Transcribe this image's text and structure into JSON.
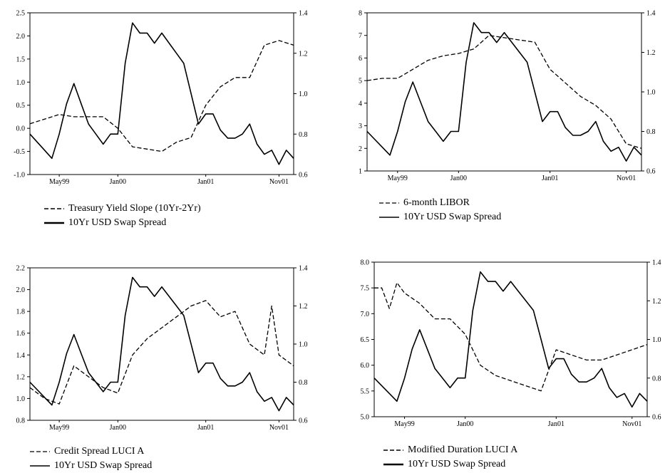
{
  "chart_data": [
    {
      "type": "line",
      "x_ticks": [
        "May99",
        "Jan00",
        "Jan01",
        "Nov01"
      ],
      "y_left_ticks": [
        "2.5",
        "2.0",
        "1.5",
        "1.0",
        "0.5",
        "0.0",
        "-0.5",
        "-1.0"
      ],
      "y_right_ticks": [
        "1.4",
        "1.2",
        "1.0",
        "0.8",
        "0.6"
      ],
      "ylim_left": [
        -1.0,
        2.5
      ],
      "ylim_right": [
        0.6,
        1.4
      ],
      "grid": false,
      "legend_position": "bottom-left",
      "legend": [
        {
          "name": "Treasury Yield Slope (10Yr-2Yr)",
          "style": "dashed",
          "axis": "left"
        },
        {
          "name": "10Yr USD Swap Spread",
          "style": "solid",
          "axis": "right"
        }
      ],
      "series": [
        {
          "name": "Treasury Yield Slope (10Yr-2Yr)",
          "axis": "left",
          "style": "dashed",
          "x": [
            "Jan99",
            "Mar99",
            "May99",
            "Jul99",
            "Sep99",
            "Nov99",
            "Jan00",
            "Mar00",
            "May00",
            "Jul00",
            "Sep00",
            "Nov00",
            "Jan01",
            "Mar01",
            "May01",
            "Jul01",
            "Sep01",
            "Nov01",
            "Jan02"
          ],
          "values": [
            0.1,
            0.2,
            0.3,
            0.25,
            0.25,
            0.25,
            0.0,
            -0.4,
            -0.45,
            -0.5,
            -0.3,
            -0.2,
            0.5,
            0.9,
            1.1,
            1.1,
            1.8,
            1.9,
            1.8
          ]
        },
        {
          "name": "10Yr USD Swap Spread",
          "axis": "right",
          "style": "solid",
          "x": [
            "Jan99",
            "Mar99",
            "Apr99",
            "May99",
            "Jun99",
            "Jul99",
            "Aug99",
            "Sep99",
            "Oct99",
            "Nov99",
            "Dec99",
            "Jan00",
            "Feb00",
            "Mar00",
            "Apr00",
            "May00",
            "Jun00",
            "Jul00",
            "Aug00",
            "Sep00",
            "Oct00",
            "Nov00",
            "Dec00",
            "Jan01",
            "Feb01",
            "Mar01",
            "Apr01",
            "May01",
            "Jun01",
            "Jul01",
            "Aug01",
            "Sep01",
            "Oct01",
            "Nov01",
            "Dec01",
            "Jan02"
          ],
          "values": [
            0.8,
            0.72,
            0.68,
            0.8,
            0.95,
            1.05,
            0.95,
            0.85,
            0.8,
            0.75,
            0.8,
            0.8,
            1.15,
            1.35,
            1.3,
            1.3,
            1.25,
            1.3,
            1.25,
            1.2,
            1.15,
            1.0,
            0.85,
            0.9,
            0.9,
            0.82,
            0.78,
            0.78,
            0.8,
            0.85,
            0.75,
            0.7,
            0.72,
            0.65,
            0.72,
            0.68
          ]
        }
      ]
    },
    {
      "type": "line",
      "x_ticks": [
        "May99",
        "Jan00",
        "Jan01",
        "Nov01"
      ],
      "y_left_ticks": [
        "8",
        "7",
        "6",
        "5",
        "4",
        "3",
        "2",
        "1"
      ],
      "y_right_ticks": [
        "1.4",
        "1.2",
        "1.0",
        "0.8",
        "0.6"
      ],
      "ylim_left": [
        1,
        8
      ],
      "ylim_right": [
        0.6,
        1.4
      ],
      "grid": false,
      "legend_position": "bottom-left",
      "legend": [
        {
          "name": "6-month LIBOR",
          "style": "dashed",
          "axis": "left"
        },
        {
          "name": "10Yr USD Swap Spread",
          "style": "solid",
          "axis": "right"
        }
      ],
      "series": [
        {
          "name": "6-month LIBOR",
          "axis": "left",
          "style": "dashed",
          "x": [
            "Jan99",
            "Mar99",
            "May99",
            "Jul99",
            "Sep99",
            "Nov99",
            "Jan00",
            "Mar00",
            "May00",
            "Jul00",
            "Sep00",
            "Nov00",
            "Jan01",
            "Mar01",
            "May01",
            "Jul01",
            "Sep01",
            "Nov01",
            "Jan02"
          ],
          "values": [
            5.0,
            5.1,
            5.1,
            5.5,
            5.9,
            6.1,
            6.2,
            6.4,
            7.0,
            6.9,
            6.8,
            6.7,
            5.5,
            4.9,
            4.3,
            3.9,
            3.3,
            2.2,
            2.0
          ]
        },
        {
          "name": "10Yr USD Swap Spread",
          "axis": "right",
          "style": "solid",
          "x": [
            "Jan99",
            "Mar99",
            "Apr99",
            "May99",
            "Jun99",
            "Jul99",
            "Aug99",
            "Sep99",
            "Oct99",
            "Nov99",
            "Dec99",
            "Jan00",
            "Feb00",
            "Mar00",
            "Apr00",
            "May00",
            "Jun00",
            "Jul00",
            "Aug00",
            "Sep00",
            "Oct00",
            "Nov00",
            "Dec00",
            "Jan01",
            "Feb01",
            "Mar01",
            "Apr01",
            "May01",
            "Jun01",
            "Jul01",
            "Aug01",
            "Sep01",
            "Oct01",
            "Nov01",
            "Dec01",
            "Jan02"
          ],
          "values": [
            0.8,
            0.72,
            0.68,
            0.8,
            0.95,
            1.05,
            0.95,
            0.85,
            0.8,
            0.75,
            0.8,
            0.8,
            1.15,
            1.35,
            1.3,
            1.3,
            1.25,
            1.3,
            1.25,
            1.2,
            1.15,
            1.0,
            0.85,
            0.9,
            0.9,
            0.82,
            0.78,
            0.78,
            0.8,
            0.85,
            0.75,
            0.7,
            0.72,
            0.65,
            0.72,
            0.68
          ]
        }
      ]
    },
    {
      "type": "line",
      "x_ticks": [
        "May99",
        "Jan00",
        "Jan01",
        "Nov01"
      ],
      "y_left_ticks": [
        "2.2",
        "2.0",
        "1.8",
        "1.6",
        "1.4",
        "1.2",
        "1.0",
        "0.8"
      ],
      "y_right_ticks": [
        "1.4",
        "1.2",
        "1.0",
        "0.8",
        "0.6"
      ],
      "ylim_left": [
        0.8,
        2.2
      ],
      "ylim_right": [
        0.6,
        1.4
      ],
      "grid": false,
      "legend_position": "bottom-left",
      "legend": [
        {
          "name": "Credit Spread LUCI A",
          "style": "dashed",
          "axis": "left"
        },
        {
          "name": "10Yr USD Swap Spread",
          "style": "solid",
          "axis": "right"
        }
      ],
      "series": [
        {
          "name": "Credit Spread LUCI A",
          "axis": "left",
          "style": "dashed",
          "x": [
            "Jan99",
            "Mar99",
            "May99",
            "Jul99",
            "Sep99",
            "Nov99",
            "Jan00",
            "Mar00",
            "May00",
            "Jul00",
            "Sep00",
            "Nov00",
            "Jan01",
            "Mar01",
            "May01",
            "Jul01",
            "Sep01",
            "Oct01",
            "Nov01",
            "Jan02"
          ],
          "values": [
            1.1,
            1.0,
            0.95,
            1.3,
            1.2,
            1.1,
            1.05,
            1.4,
            1.55,
            1.65,
            1.75,
            1.85,
            1.9,
            1.75,
            1.8,
            1.5,
            1.4,
            1.85,
            1.4,
            1.3
          ]
        },
        {
          "name": "10Yr USD Swap Spread",
          "axis": "right",
          "style": "solid",
          "x": [
            "Jan99",
            "Mar99",
            "Apr99",
            "May99",
            "Jun99",
            "Jul99",
            "Aug99",
            "Sep99",
            "Oct99",
            "Nov99",
            "Dec99",
            "Jan00",
            "Feb00",
            "Mar00",
            "Apr00",
            "May00",
            "Jun00",
            "Jul00",
            "Aug00",
            "Sep00",
            "Oct00",
            "Nov00",
            "Dec00",
            "Jan01",
            "Feb01",
            "Mar01",
            "Apr01",
            "May01",
            "Jun01",
            "Jul01",
            "Aug01",
            "Sep01",
            "Oct01",
            "Nov01",
            "Dec01",
            "Jan02"
          ],
          "values": [
            0.8,
            0.72,
            0.68,
            0.8,
            0.95,
            1.05,
            0.95,
            0.85,
            0.8,
            0.75,
            0.8,
            0.8,
            1.15,
            1.35,
            1.3,
            1.3,
            1.25,
            1.3,
            1.25,
            1.2,
            1.15,
            1.0,
            0.85,
            0.9,
            0.9,
            0.82,
            0.78,
            0.78,
            0.8,
            0.85,
            0.75,
            0.7,
            0.72,
            0.65,
            0.72,
            0.68
          ]
        }
      ]
    },
    {
      "type": "line",
      "x_ticks": [
        "May99",
        "Jan00",
        "Jan01",
        "Nov01"
      ],
      "y_left_ticks": [
        "8.0",
        "7.5",
        "7.0",
        "6.5",
        "6.0",
        "5.5",
        "5.0"
      ],
      "y_right_ticks": [
        "1.4",
        "1.2",
        "1.0",
        "0.8",
        "0.6"
      ],
      "ylim_left": [
        5.0,
        8.0
      ],
      "ylim_right": [
        0.6,
        1.4
      ],
      "grid": false,
      "legend_position": "bottom-left",
      "legend": [
        {
          "name": "Modified Duration LUCI A",
          "style": "dashed",
          "axis": "left"
        },
        {
          "name": "10Yr USD Swap Spread",
          "style": "solid",
          "axis": "right"
        }
      ],
      "series": [
        {
          "name": "Modified Duration LUCI A",
          "axis": "left",
          "style": "dashed",
          "x": [
            "Jan99",
            "Feb99",
            "Mar99",
            "Apr99",
            "May99",
            "Jul99",
            "Sep99",
            "Nov99",
            "Jan00",
            "Mar00",
            "May00",
            "Jul00",
            "Sep00",
            "Nov00",
            "Jan01",
            "Mar01",
            "May01",
            "Jul01",
            "Sep01",
            "Nov01",
            "Jan02"
          ],
          "values": [
            7.5,
            7.5,
            7.1,
            7.6,
            7.4,
            7.2,
            6.9,
            6.9,
            6.6,
            6.0,
            5.8,
            5.7,
            5.6,
            5.5,
            6.3,
            6.2,
            6.1,
            6.1,
            6.2,
            6.3,
            6.4
          ]
        },
        {
          "name": "10Yr USD Swap Spread",
          "axis": "right",
          "style": "solid",
          "x": [
            "Jan99",
            "Mar99",
            "Apr99",
            "May99",
            "Jun99",
            "Jul99",
            "Aug99",
            "Sep99",
            "Oct99",
            "Nov99",
            "Dec99",
            "Jan00",
            "Feb00",
            "Mar00",
            "Apr00",
            "May00",
            "Jun00",
            "Jul00",
            "Aug00",
            "Sep00",
            "Oct00",
            "Nov00",
            "Dec00",
            "Jan01",
            "Feb01",
            "Mar01",
            "Apr01",
            "May01",
            "Jun01",
            "Jul01",
            "Aug01",
            "Sep01",
            "Oct01",
            "Nov01",
            "Dec01",
            "Jan02"
          ],
          "values": [
            0.8,
            0.72,
            0.68,
            0.8,
            0.95,
            1.05,
            0.95,
            0.85,
            0.8,
            0.75,
            0.8,
            0.8,
            1.15,
            1.35,
            1.3,
            1.3,
            1.25,
            1.3,
            1.25,
            1.2,
            1.15,
            1.0,
            0.85,
            0.9,
            0.9,
            0.82,
            0.78,
            0.78,
            0.8,
            0.85,
            0.75,
            0.7,
            0.72,
            0.65,
            0.72,
            0.68
          ]
        }
      ]
    }
  ]
}
